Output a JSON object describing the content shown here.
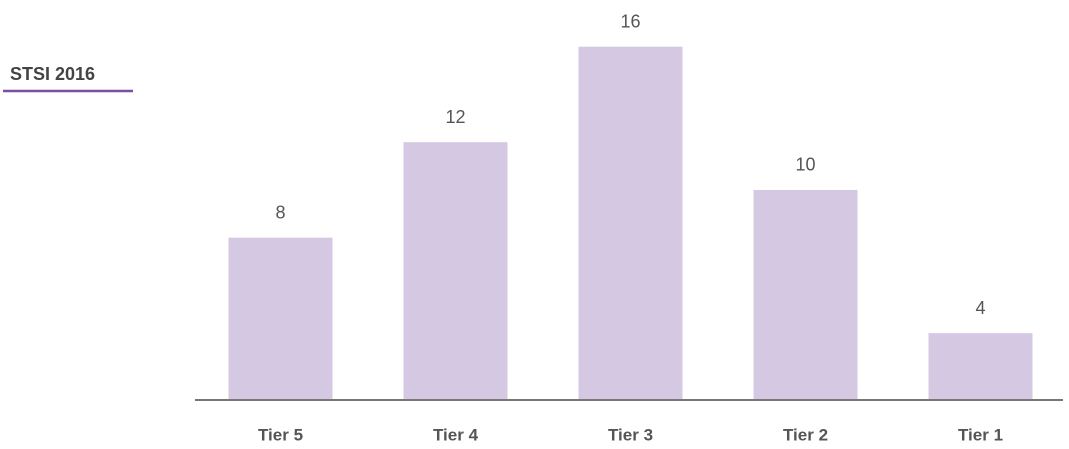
{
  "chart_data": {
    "type": "bar",
    "title": "STSI 2016",
    "categories": [
      "Tier 5",
      "Tier 4",
      "Tier 3",
      "Tier 2",
      "Tier 1"
    ],
    "values": [
      8,
      12,
      16,
      10,
      4
    ],
    "color": "#d5c8e3",
    "ylim": [
      1.2,
      16.7
    ]
  }
}
